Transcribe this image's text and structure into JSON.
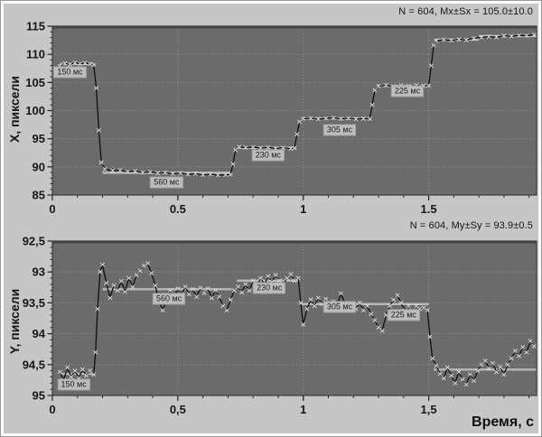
{
  "colors": {
    "figure_bg": "#c6c6c6",
    "plot_bg": "#6b6b6b",
    "plot_border": "#3c3c3c",
    "grid": "#9c9c9c",
    "trace": "#101010",
    "marker": "#ececec",
    "fixation_band": "#cdcdcd",
    "label_box_bg": "#bdbdbd",
    "text": "#141414"
  },
  "chart_data": [
    {
      "type": "line",
      "series_name": "gaze-x-coordinate-trace",
      "annotation": "N = 604, Mx±Sx = 105.0±10.0",
      "ylabel": "X, пиксели",
      "xlabel": "",
      "xlim": [
        0,
        1.93
      ],
      "ylim": [
        85,
        115
      ],
      "y_inverted": false,
      "grid": true,
      "x_minor_step": 0.1,
      "y_minor_step": 1,
      "xticks": [
        {
          "v": 0,
          "label": "0"
        },
        {
          "v": 0.5,
          "label": "0.5"
        },
        {
          "v": 1,
          "label": "1"
        },
        {
          "v": 1.5,
          "label": "1.5"
        }
      ],
      "yticks": [
        {
          "v": 115,
          "label": "115"
        },
        {
          "v": 110,
          "label": "110"
        },
        {
          "v": 105,
          "label": "105"
        },
        {
          "v": 100,
          "label": "100"
        },
        {
          "v": 95,
          "label": "95"
        },
        {
          "v": 90,
          "label": "90"
        },
        {
          "v": 85,
          "label": "85"
        }
      ],
      "fixation_labels": [
        {
          "text": "150 мс",
          "t": 0.07,
          "v": 106.8
        },
        {
          "text": "560 мс",
          "t": 0.455,
          "v": 87.3
        },
        {
          "text": "230 мс",
          "t": 0.86,
          "v": 92.1
        },
        {
          "text": "305 мс",
          "t": 1.145,
          "v": 96.5
        },
        {
          "text": "225 мс",
          "t": 1.415,
          "v": 103.4
        }
      ],
      "fixation_bands": [
        [
          0.03,
          0.165,
          108.3
        ],
        [
          0.2,
          0.715,
          88.95
        ],
        [
          0.74,
          0.97,
          93.4
        ],
        [
          0.995,
          1.27,
          98.6
        ],
        [
          1.295,
          1.505,
          104.4
        ],
        [
          1.525,
          1.7,
          112.6
        ],
        [
          1.7,
          1.93,
          113.25
        ]
      ],
      "points": [
        [
          0.03,
          107.9
        ],
        [
          0.05,
          108.4
        ],
        [
          0.07,
          108.2
        ],
        [
          0.09,
          108.5
        ],
        [
          0.11,
          108.3
        ],
        [
          0.13,
          108.45
        ],
        [
          0.15,
          108.3
        ],
        [
          0.165,
          108.1
        ],
        [
          0.175,
          104.0
        ],
        [
          0.185,
          96.5
        ],
        [
          0.195,
          90.8
        ],
        [
          0.21,
          89.6
        ],
        [
          0.24,
          89.3
        ],
        [
          0.27,
          89.4
        ],
        [
          0.3,
          89.15
        ],
        [
          0.33,
          89.25
        ],
        [
          0.36,
          89.0
        ],
        [
          0.39,
          89.1
        ],
        [
          0.42,
          88.9
        ],
        [
          0.45,
          89.0
        ],
        [
          0.48,
          88.8
        ],
        [
          0.51,
          88.9
        ],
        [
          0.54,
          88.7
        ],
        [
          0.57,
          88.8
        ],
        [
          0.6,
          88.6
        ],
        [
          0.63,
          88.7
        ],
        [
          0.66,
          88.55
        ],
        [
          0.69,
          88.6
        ],
        [
          0.71,
          88.65
        ],
        [
          0.72,
          90.5
        ],
        [
          0.73,
          93.0
        ],
        [
          0.745,
          93.55
        ],
        [
          0.77,
          93.4
        ],
        [
          0.8,
          93.5
        ],
        [
          0.83,
          93.35
        ],
        [
          0.86,
          93.45
        ],
        [
          0.89,
          93.3
        ],
        [
          0.92,
          93.4
        ],
        [
          0.95,
          93.25
        ],
        [
          0.965,
          93.35
        ],
        [
          0.975,
          95.8
        ],
        [
          0.985,
          98.0
        ],
        [
          1.0,
          98.55
        ],
        [
          1.03,
          98.65
        ],
        [
          1.06,
          98.5
        ],
        [
          1.09,
          98.6
        ],
        [
          1.12,
          98.7
        ],
        [
          1.15,
          98.55
        ],
        [
          1.18,
          98.65
        ],
        [
          1.21,
          98.5
        ],
        [
          1.24,
          98.6
        ],
        [
          1.265,
          98.55
        ],
        [
          1.275,
          101.0
        ],
        [
          1.285,
          103.6
        ],
        [
          1.3,
          104.35
        ],
        [
          1.33,
          104.5
        ],
        [
          1.36,
          104.3
        ],
        [
          1.39,
          104.45
        ],
        [
          1.42,
          104.35
        ],
        [
          1.45,
          104.5
        ],
        [
          1.48,
          104.4
        ],
        [
          1.5,
          104.45
        ],
        [
          1.51,
          108.0
        ],
        [
          1.52,
          111.6
        ],
        [
          1.53,
          112.4
        ],
        [
          1.56,
          112.6
        ],
        [
          1.59,
          112.5
        ],
        [
          1.62,
          112.65
        ],
        [
          1.65,
          112.55
        ],
        [
          1.68,
          112.85
        ],
        [
          1.71,
          113.0
        ],
        [
          1.74,
          113.15
        ],
        [
          1.77,
          113.05
        ],
        [
          1.8,
          113.3
        ],
        [
          1.83,
          113.2
        ],
        [
          1.86,
          113.35
        ],
        [
          1.89,
          113.3
        ],
        [
          1.92,
          113.45
        ]
      ]
    },
    {
      "type": "line",
      "series_name": "gaze-y-coordinate-trace",
      "annotation": "N = 604, My±Sy = 93.9±0.5",
      "ylabel": "Y, пиксели",
      "xlabel": "Время, с",
      "xlim": [
        0,
        1.93
      ],
      "ylim": [
        92.5,
        95
      ],
      "y_inverted": true,
      "grid": true,
      "x_minor_step": 0.1,
      "y_minor_step": 0.1,
      "xticks": [
        {
          "v": 0,
          "label": "0"
        },
        {
          "v": 0.5,
          "label": "0,5"
        },
        {
          "v": 1,
          "label": "1"
        },
        {
          "v": 1.5,
          "label": "1,5"
        }
      ],
      "yticks": [
        {
          "v": 92.5,
          "label": "92,5"
        },
        {
          "v": 93,
          "label": "93"
        },
        {
          "v": 93.5,
          "label": "93,5"
        },
        {
          "v": 94,
          "label": "94"
        },
        {
          "v": 94.5,
          "label": "94,5"
        },
        {
          "v": 95,
          "label": "95"
        }
      ],
      "fixation_labels": [
        {
          "text": "150 мс",
          "t": 0.085,
          "v": 94.83
        },
        {
          "text": "560 мс",
          "t": 0.465,
          "v": 93.43
        },
        {
          "text": "230 мс",
          "t": 0.865,
          "v": 93.26
        },
        {
          "text": "305 мс",
          "t": 1.145,
          "v": 93.57
        },
        {
          "text": "225 мс",
          "t": 1.4,
          "v": 93.7
        }
      ],
      "fixation_bands": [
        [
          0.03,
          0.168,
          94.65
        ],
        [
          0.2,
          0.715,
          93.28
        ],
        [
          0.735,
          0.985,
          93.14
        ],
        [
          0.99,
          1.5,
          93.52
        ],
        [
          1.52,
          1.93,
          94.58
        ]
      ],
      "points": [
        [
          0.03,
          94.62
        ],
        [
          0.045,
          94.75
        ],
        [
          0.06,
          94.55
        ],
        [
          0.075,
          94.7
        ],
        [
          0.09,
          94.6
        ],
        [
          0.105,
          94.72
        ],
        [
          0.12,
          94.58
        ],
        [
          0.135,
          94.68
        ],
        [
          0.15,
          94.6
        ],
        [
          0.165,
          94.66
        ],
        [
          0.172,
          94.3
        ],
        [
          0.18,
          93.6
        ],
        [
          0.19,
          93.0
        ],
        [
          0.2,
          92.88
        ],
        [
          0.215,
          93.18
        ],
        [
          0.23,
          93.42
        ],
        [
          0.245,
          93.22
        ],
        [
          0.26,
          93.3
        ],
        [
          0.275,
          93.15
        ],
        [
          0.29,
          93.32
        ],
        [
          0.305,
          93.1
        ],
        [
          0.32,
          93.24
        ],
        [
          0.335,
          93.05
        ],
        [
          0.35,
          92.98
        ],
        [
          0.365,
          92.9
        ],
        [
          0.38,
          92.86
        ],
        [
          0.395,
          93.02
        ],
        [
          0.41,
          93.22
        ],
        [
          0.425,
          93.48
        ],
        [
          0.44,
          93.62
        ],
        [
          0.455,
          93.45
        ],
        [
          0.47,
          93.3
        ],
        [
          0.485,
          93.4
        ],
        [
          0.5,
          93.27
        ],
        [
          0.515,
          93.36
        ],
        [
          0.53,
          93.24
        ],
        [
          0.545,
          93.36
        ],
        [
          0.56,
          93.28
        ],
        [
          0.575,
          93.4
        ],
        [
          0.59,
          93.26
        ],
        [
          0.605,
          93.34
        ],
        [
          0.62,
          93.27
        ],
        [
          0.635,
          93.42
        ],
        [
          0.65,
          93.3
        ],
        [
          0.665,
          93.4
        ],
        [
          0.68,
          93.55
        ],
        [
          0.695,
          93.62
        ],
        [
          0.71,
          93.45
        ],
        [
          0.725,
          93.3
        ],
        [
          0.74,
          93.24
        ],
        [
          0.755,
          93.33
        ],
        [
          0.77,
          93.2
        ],
        [
          0.785,
          93.3
        ],
        [
          0.8,
          93.14
        ],
        [
          0.815,
          93.24
        ],
        [
          0.83,
          93.1
        ],
        [
          0.845,
          93.2
        ],
        [
          0.86,
          93.07
        ],
        [
          0.875,
          93.16
        ],
        [
          0.89,
          93.05
        ],
        [
          0.905,
          93.14
        ],
        [
          0.92,
          93.2
        ],
        [
          0.935,
          93.1
        ],
        [
          0.95,
          93.04
        ],
        [
          0.965,
          93.14
        ],
        [
          0.98,
          93.1
        ],
        [
          0.99,
          93.5
        ],
        [
          1.0,
          93.85
        ],
        [
          1.015,
          93.6
        ],
        [
          1.03,
          93.45
        ],
        [
          1.045,
          93.55
        ],
        [
          1.06,
          93.42
        ],
        [
          1.075,
          93.52
        ],
        [
          1.09,
          93.44
        ],
        [
          1.105,
          93.56
        ],
        [
          1.12,
          93.48
        ],
        [
          1.135,
          93.55
        ],
        [
          1.15,
          93.35
        ],
        [
          1.165,
          93.5
        ],
        [
          1.18,
          93.58
        ],
        [
          1.195,
          93.52
        ],
        [
          1.21,
          93.6
        ],
        [
          1.225,
          93.5
        ],
        [
          1.24,
          93.62
        ],
        [
          1.255,
          93.55
        ],
        [
          1.27,
          93.68
        ],
        [
          1.285,
          93.78
        ],
        [
          1.3,
          93.9
        ],
        [
          1.315,
          93.95
        ],
        [
          1.33,
          93.7
        ],
        [
          1.345,
          93.55
        ],
        [
          1.36,
          93.45
        ],
        [
          1.375,
          93.38
        ],
        [
          1.39,
          93.5
        ],
        [
          1.405,
          93.62
        ],
        [
          1.42,
          93.55
        ],
        [
          1.435,
          93.62
        ],
        [
          1.45,
          93.55
        ],
        [
          1.465,
          93.6
        ],
        [
          1.48,
          93.58
        ],
        [
          1.495,
          93.62
        ],
        [
          1.505,
          94.05
        ],
        [
          1.515,
          94.4
        ],
        [
          1.53,
          94.52
        ],
        [
          1.545,
          94.65
        ],
        [
          1.56,
          94.72
        ],
        [
          1.575,
          94.55
        ],
        [
          1.59,
          94.68
        ],
        [
          1.605,
          94.8
        ],
        [
          1.62,
          94.62
        ],
        [
          1.635,
          94.74
        ],
        [
          1.65,
          94.82
        ],
        [
          1.665,
          94.66
        ],
        [
          1.68,
          94.76
        ],
        [
          1.695,
          94.6
        ],
        [
          1.71,
          94.5
        ],
        [
          1.725,
          94.44
        ],
        [
          1.74,
          94.56
        ],
        [
          1.755,
          94.48
        ],
        [
          1.77,
          94.62
        ],
        [
          1.785,
          94.54
        ],
        [
          1.8,
          94.66
        ],
        [
          1.815,
          94.5
        ],
        [
          1.83,
          94.4
        ],
        [
          1.845,
          94.28
        ],
        [
          1.86,
          94.36
        ],
        [
          1.875,
          94.22
        ],
        [
          1.89,
          94.3
        ],
        [
          1.905,
          94.12
        ],
        [
          1.92,
          94.2
        ]
      ]
    }
  ]
}
